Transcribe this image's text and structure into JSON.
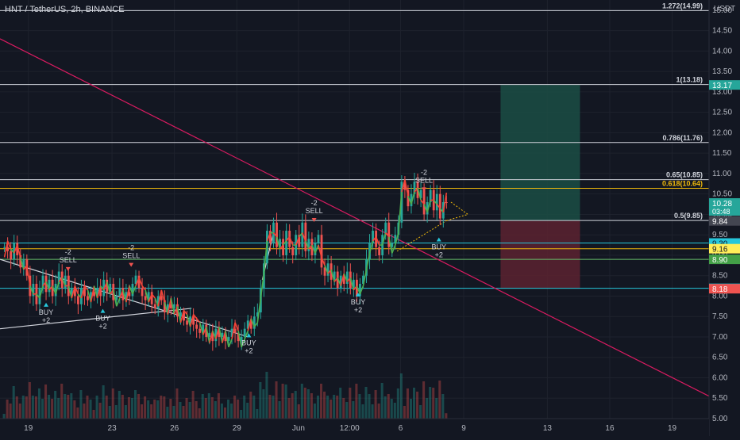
{
  "header": {
    "symbol": "HNT / TetherUS, 2h, BINANCE",
    "currency": "USDT"
  },
  "colors": {
    "background": "#131722",
    "up": "#26a69a",
    "down": "#ef5350",
    "level_white": "#d1d4dc",
    "level_gold": "#f0b90b",
    "level_teal": "#26c6da",
    "level_green": "#66bb6a",
    "trend_line": "#d81b60",
    "profit_zone": "#1b4d44",
    "loss_zone": "#5c2230"
  },
  "chart_data": {
    "type": "candlestick",
    "ylim": [
      5,
      15.25
    ],
    "y_ticks": [
      5,
      5.5,
      6,
      6.5,
      7,
      7.5,
      8,
      8.5,
      9,
      9.5,
      10,
      10.5,
      11,
      11.5,
      12,
      12.5,
      13,
      13.5,
      14,
      14.5,
      15
    ],
    "y_tick_labels": [
      "5.00",
      "5.50",
      "6.00",
      "6.50",
      "7.00",
      "7.50",
      "8.00",
      "8.50",
      "9.00",
      "9.50",
      "10.00",
      "10.50",
      "11.00",
      "11.50",
      "12.00",
      "12.50",
      "13.00",
      "13.50",
      "14.00",
      "14.50",
      "15.00"
    ],
    "x_ticks": [
      {
        "label": "19",
        "pos": 0.04
      },
      {
        "label": "23",
        "pos": 0.158
      },
      {
        "label": "26",
        "pos": 0.246
      },
      {
        "label": "29",
        "pos": 0.334
      },
      {
        "label": "Jun",
        "pos": 0.421
      },
      {
        "label": "12:00",
        "pos": 0.493
      },
      {
        "label": "6",
        "pos": 0.565
      },
      {
        "label": "9",
        "pos": 0.654
      },
      {
        "label": "13",
        "pos": 0.772
      },
      {
        "label": "16",
        "pos": 0.86
      },
      {
        "label": "19",
        "pos": 0.948
      }
    ],
    "levels": [
      {
        "label": "1.272(14.99)",
        "value": 14.99,
        "color": "white"
      },
      {
        "label": "1(13.18)",
        "value": 13.18,
        "color": "white"
      },
      {
        "label": "0.786(11.76)",
        "value": 11.76,
        "color": "white"
      },
      {
        "label": "0.65(10.85)",
        "value": 10.85,
        "color": "white"
      },
      {
        "label": "0.618(10.64)",
        "value": 10.64,
        "color": "gold"
      },
      {
        "label": "0.5(9.85)",
        "value": 9.85,
        "color": "white"
      },
      {
        "label": "",
        "value": 9.3,
        "color": "teal"
      },
      {
        "label": "",
        "value": 9.16,
        "color": "gold"
      },
      {
        "label": "",
        "value": 8.9,
        "color": "green"
      },
      {
        "label": "",
        "value": 8.19,
        "color": "teal"
      }
    ],
    "price_tags": [
      {
        "value": 13.17,
        "text": "13.17",
        "bg": "#26a69a",
        "fg": "#ffffff"
      },
      {
        "value": 10.28,
        "text": "10.28",
        "bg": "#26a69a",
        "fg": "#ffffff",
        "sub": "03:48"
      },
      {
        "value": 9.84,
        "text": "9.84",
        "bg": "#434651",
        "fg": "#ffffff"
      },
      {
        "value": 9.3,
        "text": "9.30",
        "bg": "#26c6da",
        "fg": "#131722"
      },
      {
        "value": 9.16,
        "text": "9.16",
        "bg": "#ffee58",
        "fg": "#131722"
      },
      {
        "value": 8.9,
        "text": "8.90",
        "bg": "#43a047",
        "fg": "#ffffff"
      },
      {
        "value": 8.19,
        "text": "8.19",
        "bg": "#26c6da",
        "fg": "#131722"
      },
      {
        "value": 8.18,
        "text": "8.18",
        "bg": "#ef5350",
        "fg": "#ffffff"
      }
    ],
    "position_zone": {
      "x_start": 0.706,
      "x_end": 0.818,
      "entry": 9.84,
      "target": 13.17,
      "stop": 8.18
    },
    "trend_lines": [
      {
        "name": "descending-resistance",
        "x1": 0.0,
        "y1": 14.3,
        "x2": 1.0,
        "y2": 5.55,
        "color": "trend_line"
      },
      {
        "name": "wedge-upper",
        "x1": 0.0,
        "y1": 8.9,
        "x2": 0.35,
        "y2": 7.0,
        "color": "white"
      },
      {
        "name": "wedge-lower",
        "x1": 0.0,
        "y1": 7.2,
        "x2": 0.27,
        "y2": 7.7,
        "color": "white"
      },
      {
        "name": "rally-line",
        "x1": 0.37,
        "y1": 8.4,
        "x2": 0.385,
        "y2": 9.5,
        "color": "white"
      }
    ],
    "dotted_lines": [
      {
        "x1": 0.56,
        "y1": 9.1,
        "x2": 0.63,
        "y2": 9.85
      },
      {
        "x1": 0.63,
        "y1": 9.85,
        "x2": 0.66,
        "y2": 10.0
      },
      {
        "x1": 0.636,
        "y1": 10.3,
        "x2": 0.66,
        "y2": 10.0
      }
    ],
    "candles_close": [
      9.2,
      9.1,
      8.9,
      9.3,
      9.0,
      8.7,
      8.9,
      8.5,
      8.0,
      8.3,
      7.8,
      8.2,
      8.5,
      8.1,
      8.4,
      8.0,
      8.3,
      8.6,
      8.2,
      8.5,
      8.0,
      8.2,
      8.0,
      7.8,
      8.2,
      8.0,
      7.9,
      8.1,
      8.0,
      8.2,
      8.0,
      8.4,
      8.1,
      8.3,
      7.9,
      8.0,
      8.2,
      7.9,
      8.1,
      8.0,
      8.3,
      8.5,
      8.2,
      8.0,
      7.9,
      8.1,
      7.8,
      7.7,
      8.0,
      7.9,
      7.6,
      7.8,
      7.7,
      7.8,
      7.5,
      7.6,
      7.4,
      7.3,
      7.5,
      7.3,
      7.2,
      7.1,
      7.3,
      7.0,
      7.1,
      6.9,
      7.2,
      7.0,
      7.1,
      6.9,
      7.0,
      7.2,
      7.1,
      6.9,
      7.0,
      7.2,
      7.4,
      7.2,
      7.5,
      7.6,
      8.2,
      8.8,
      9.6,
      9.3,
      9.8,
      9.2,
      9.4,
      9.0,
      9.6,
      9.2,
      9.0,
      9.5,
      9.2,
      9.8,
      9.1,
      9.4,
      9.0,
      9.3,
      9.5,
      8.7,
      8.5,
      8.8,
      8.4,
      8.6,
      8.2,
      8.5,
      8.3,
      8.6,
      8.2,
      8.4,
      8.0,
      8.3,
      8.5,
      8.9,
      9.3,
      9.6,
      9.2,
      9.0,
      9.5,
      9.8,
      9.2,
      9.3,
      9.5,
      9.8,
      10.8,
      10.6,
      10.2,
      10.5,
      10.8,
      10.4,
      10.6,
      10.0,
      10.3,
      10.6,
      10.1,
      10.5,
      9.9,
      10.3,
      10.28
    ],
    "signals": [
      {
        "type": "sell",
        "label": "SELL",
        "sub": "-2",
        "x": 0.096,
        "value": 8.75
      },
      {
        "type": "sell",
        "label": "SELL",
        "sub": "-2",
        "x": 0.185,
        "value": 8.85
      },
      {
        "type": "sell",
        "label": "SELL",
        "sub": "-2",
        "x": 0.443,
        "value": 9.95
      },
      {
        "type": "sell",
        "label": "SELL",
        "sub": "-2",
        "x": 0.598,
        "value": 10.7
      },
      {
        "type": "buy",
        "label": "BUY",
        "sub": "+2",
        "x": 0.065,
        "value": 7.7
      },
      {
        "type": "buy",
        "label": "BUY",
        "sub": "+2",
        "x": 0.145,
        "value": 7.55
      },
      {
        "type": "buy",
        "label": "BUY",
        "sub": "+2",
        "x": 0.351,
        "value": 6.95
      },
      {
        "type": "buy",
        "label": "BUY",
        "sub": "+2",
        "x": 0.505,
        "value": 7.95
      },
      {
        "type": "buy",
        "label": "BUY",
        "sub": "+2",
        "x": 0.619,
        "value": 9.3
      }
    ]
  }
}
